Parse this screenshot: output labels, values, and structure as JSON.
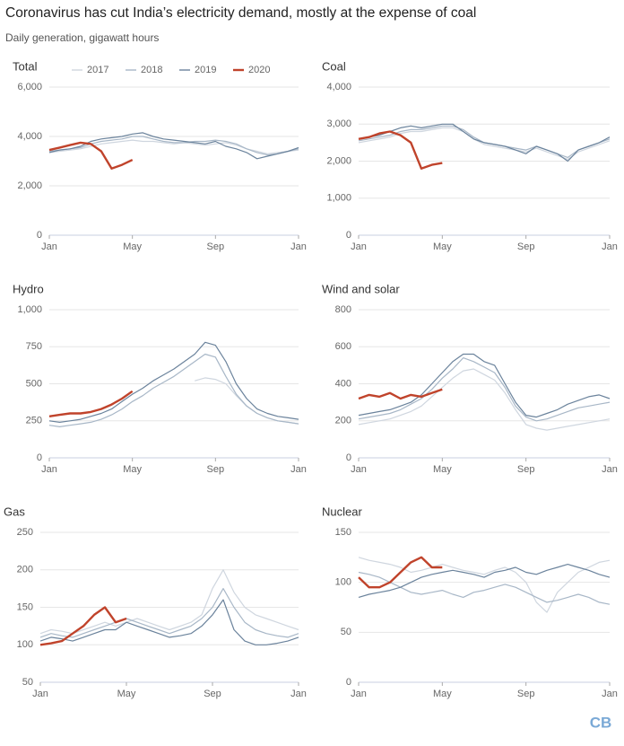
{
  "title": "Coronavirus has cut India’s electricity demand, mostly at the expense of coal",
  "subtitle": "Daily generation, gigawatt hours",
  "logo": "CB",
  "chart_data": [
    {
      "type": "line",
      "title": "Total",
      "categories": [
        "Jan",
        null,
        null,
        null,
        null,
        null,
        null,
        null,
        "May",
        null,
        null,
        null,
        null,
        null,
        null,
        null,
        "Sep",
        null,
        null,
        null,
        null,
        null,
        null,
        null,
        "Jan"
      ],
      "ylim": [
        0,
        6000
      ],
      "yticks": [
        0,
        {
          "value": 2000,
          "label": "2,000"
        },
        {
          "value": 4000,
          "label": "4,000"
        },
        {
          "value": 6000,
          "label": "6,000"
        }
      ],
      "grid": true,
      "series": [
        {
          "name": "2017",
          "color": "#cfd6df",
          "values": [
            3350,
            3400,
            3450,
            3500,
            3600,
            3700,
            3750,
            3800,
            3850,
            3800,
            3800,
            3750,
            3700,
            3750,
            3700,
            3650,
            3700,
            3750,
            3650,
            3500,
            3400,
            3300,
            3350,
            3400,
            3450
          ]
        },
        {
          "name": "2018",
          "color": "#a8b7c7",
          "values": [
            3400,
            3450,
            3500,
            3550,
            3700,
            3800,
            3850,
            3900,
            4000,
            4000,
            3900,
            3800,
            3750,
            3750,
            3800,
            3800,
            3850,
            3800,
            3700,
            3500,
            3350,
            3250,
            3300,
            3400,
            3500
          ]
        },
        {
          "name": "2019",
          "color": "#6b839c",
          "values": [
            3350,
            3450,
            3500,
            3600,
            3800,
            3900,
            3950,
            4000,
            4100,
            4150,
            4000,
            3900,
            3850,
            3800,
            3750,
            3700,
            3800,
            3600,
            3500,
            3350,
            3100,
            3200,
            3300,
            3400,
            3550
          ]
        },
        {
          "name": "2020",
          "color": "#c0432b",
          "values": [
            3450,
            3550,
            3650,
            3750,
            3700,
            3400,
            2700,
            2850,
            3050,
            null,
            null,
            null,
            null,
            null,
            null,
            null,
            null,
            null,
            null,
            null,
            null,
            null,
            null,
            null,
            null
          ]
        }
      ]
    },
    {
      "type": "line",
      "title": "Coal",
      "categories": [
        "Jan",
        null,
        null,
        null,
        null,
        null,
        null,
        null,
        "May",
        null,
        null,
        null,
        null,
        null,
        null,
        null,
        "Sep",
        null,
        null,
        null,
        null,
        null,
        null,
        null,
        "Jan"
      ],
      "ylim": [
        0,
        4000
      ],
      "yticks": [
        0,
        {
          "value": 1000,
          "label": "1,000"
        },
        {
          "value": 2000,
          "label": "2,000"
        },
        {
          "value": 3000,
          "label": "3,000"
        },
        {
          "value": 4000,
          "label": "4,000"
        }
      ],
      "grid": true,
      "series": [
        {
          "color": "#cfd6df",
          "values": [
            2500,
            2550,
            2600,
            2650,
            2750,
            2800,
            2800,
            2850,
            2900,
            2900,
            2800,
            2600,
            2450,
            2400,
            2350,
            2300,
            2250,
            2350,
            2250,
            2150,
            2050,
            2250,
            2350,
            2450,
            2550
          ]
        },
        {
          "color": "#a8b7c7",
          "values": [
            2550,
            2600,
            2650,
            2700,
            2800,
            2850,
            2850,
            2900,
            2950,
            2950,
            2850,
            2650,
            2500,
            2450,
            2400,
            2350,
            2300,
            2400,
            2300,
            2200,
            2100,
            2300,
            2400,
            2500,
            2600
          ]
        },
        {
          "color": "#6b839c",
          "values": [
            2600,
            2650,
            2700,
            2800,
            2900,
            2950,
            2900,
            2950,
            3000,
            3000,
            2800,
            2600,
            2500,
            2450,
            2400,
            2300,
            2200,
            2400,
            2300,
            2200,
            2000,
            2300,
            2400,
            2500,
            2650
          ]
        },
        {
          "color": "#c0432b",
          "values": [
            2600,
            2650,
            2750,
            2800,
            2700,
            2500,
            1800,
            1900,
            1950,
            null,
            null,
            null,
            null,
            null,
            null,
            null,
            null,
            null,
            null,
            null,
            null,
            null,
            null,
            null,
            null
          ]
        }
      ]
    },
    {
      "type": "line",
      "title": "Hydro",
      "categories": [
        "Jan",
        null,
        null,
        null,
        null,
        null,
        null,
        null,
        "May",
        null,
        null,
        null,
        null,
        null,
        null,
        null,
        "Sep",
        null,
        null,
        null,
        null,
        null,
        null,
        null,
        "Jan"
      ],
      "ylim": [
        0,
        1000
      ],
      "yticks": [
        0,
        250,
        500,
        750,
        {
          "value": 1000,
          "label": "1,000"
        }
      ],
      "grid": true,
      "series": [
        {
          "color": "#cfd6df",
          "values": [
            null,
            null,
            null,
            null,
            null,
            null,
            null,
            null,
            null,
            null,
            null,
            null,
            null,
            null,
            520,
            540,
            530,
            500,
            420,
            350,
            300,
            270,
            250,
            240,
            230
          ]
        },
        {
          "color": "#a8b7c7",
          "values": [
            220,
            210,
            220,
            230,
            240,
            260,
            290,
            330,
            380,
            420,
            470,
            510,
            550,
            600,
            650,
            700,
            680,
            550,
            430,
            350,
            300,
            270,
            250,
            240,
            230
          ]
        },
        {
          "color": "#6b839c",
          "values": [
            250,
            240,
            250,
            260,
            280,
            300,
            330,
            380,
            430,
            470,
            520,
            560,
            600,
            650,
            700,
            780,
            760,
            650,
            500,
            400,
            330,
            300,
            280,
            270,
            260
          ]
        },
        {
          "color": "#c0432b",
          "values": [
            280,
            290,
            300,
            300,
            310,
            330,
            360,
            400,
            450,
            null,
            null,
            null,
            null,
            null,
            null,
            null,
            null,
            null,
            null,
            null,
            null,
            null,
            null,
            null,
            null
          ]
        }
      ]
    },
    {
      "type": "line",
      "title": "Wind and solar",
      "categories": [
        "Jan",
        null,
        null,
        null,
        null,
        null,
        null,
        null,
        "May",
        null,
        null,
        null,
        null,
        null,
        null,
        null,
        "Sep",
        null,
        null,
        null,
        null,
        null,
        null,
        null,
        "Jan"
      ],
      "ylim": [
        0,
        800
      ],
      "yticks": [
        0,
        200,
        400,
        600,
        800
      ],
      "grid": true,
      "series": [
        {
          "color": "#cfd6df",
          "values": [
            180,
            190,
            200,
            210,
            230,
            250,
            280,
            330,
            380,
            430,
            470,
            480,
            450,
            420,
            350,
            260,
            180,
            160,
            150,
            160,
            170,
            180,
            190,
            200,
            210
          ]
        },
        {
          "color": "#a8b7c7",
          "values": [
            210,
            220,
            230,
            240,
            260,
            290,
            320,
            370,
            430,
            480,
            540,
            520,
            490,
            460,
            380,
            280,
            220,
            200,
            210,
            230,
            250,
            270,
            280,
            290,
            300
          ]
        },
        {
          "color": "#6b839c",
          "values": [
            230,
            240,
            250,
            260,
            280,
            300,
            340,
            400,
            460,
            520,
            560,
            560,
            520,
            500,
            400,
            300,
            230,
            220,
            240,
            260,
            290,
            310,
            330,
            340,
            320
          ]
        },
        {
          "color": "#c0432b",
          "values": [
            320,
            340,
            330,
            350,
            320,
            340,
            330,
            350,
            370,
            null,
            null,
            null,
            null,
            null,
            null,
            null,
            null,
            null,
            null,
            null,
            null,
            null,
            null,
            null,
            null
          ]
        }
      ]
    },
    {
      "type": "line",
      "title": "Gas",
      "categories": [
        "Jan",
        null,
        null,
        null,
        null,
        null,
        null,
        null,
        "May",
        null,
        null,
        null,
        null,
        null,
        null,
        null,
        "Sep",
        null,
        null,
        null,
        null,
        null,
        null,
        null,
        "Jan"
      ],
      "ylim": [
        50,
        250
      ],
      "yticks": [
        50,
        100,
        150,
        200,
        250
      ],
      "grid": true,
      "series": [
        {
          "color": "#cfd6df",
          "values": [
            115,
            120,
            118,
            115,
            120,
            125,
            130,
            125,
            130,
            135,
            130,
            125,
            120,
            125,
            130,
            140,
            175,
            200,
            170,
            150,
            140,
            135,
            130,
            125,
            120
          ]
        },
        {
          "color": "#a8b7c7",
          "values": [
            110,
            115,
            112,
            110,
            115,
            120,
            125,
            130,
            135,
            130,
            125,
            120,
            115,
            120,
            125,
            135,
            150,
            175,
            150,
            130,
            120,
            115,
            112,
            110,
            115
          ]
        },
        {
          "color": "#6b839c",
          "values": [
            105,
            110,
            108,
            105,
            110,
            115,
            120,
            120,
            130,
            125,
            120,
            115,
            110,
            112,
            115,
            125,
            140,
            160,
            120,
            105,
            100,
            100,
            102,
            105,
            110
          ]
        },
        {
          "color": "#c0432b",
          "values": [
            100,
            102,
            105,
            115,
            125,
            140,
            150,
            130,
            135,
            null,
            null,
            null,
            null,
            null,
            null,
            null,
            null,
            null,
            null,
            null,
            null,
            null,
            null,
            null,
            null
          ]
        }
      ]
    },
    {
      "type": "line",
      "title": "Nuclear",
      "categories": [
        "Jan",
        null,
        null,
        null,
        null,
        null,
        null,
        null,
        "May",
        null,
        null,
        null,
        null,
        null,
        null,
        null,
        "Sep",
        null,
        null,
        null,
        null,
        null,
        null,
        null,
        "Jan"
      ],
      "ylim": [
        0,
        150
      ],
      "yticks": [
        0,
        50,
        100,
        150
      ],
      "grid": true,
      "series": [
        {
          "color": "#cfd6df",
          "values": [
            125,
            122,
            120,
            118,
            115,
            110,
            112,
            115,
            118,
            115,
            112,
            110,
            108,
            112,
            115,
            110,
            100,
            80,
            70,
            90,
            100,
            110,
            115,
            120,
            122
          ]
        },
        {
          "color": "#a8b7c7",
          "values": [
            110,
            108,
            105,
            100,
            95,
            90,
            88,
            90,
            92,
            88,
            85,
            90,
            92,
            95,
            98,
            95,
            90,
            85,
            80,
            82,
            85,
            88,
            85,
            80,
            78
          ]
        },
        {
          "color": "#6b839c",
          "values": [
            85,
            88,
            90,
            92,
            95,
            100,
            105,
            108,
            110,
            112,
            110,
            108,
            105,
            110,
            112,
            115,
            110,
            108,
            112,
            115,
            118,
            115,
            112,
            108,
            105
          ]
        },
        {
          "color": "#c0432b",
          "values": [
            105,
            95,
            95,
            100,
            110,
            120,
            125,
            115,
            115,
            null,
            null,
            null,
            null,
            null,
            null,
            null,
            null,
            null,
            null,
            null,
            null,
            null,
            null,
            null,
            null
          ]
        }
      ]
    }
  ]
}
